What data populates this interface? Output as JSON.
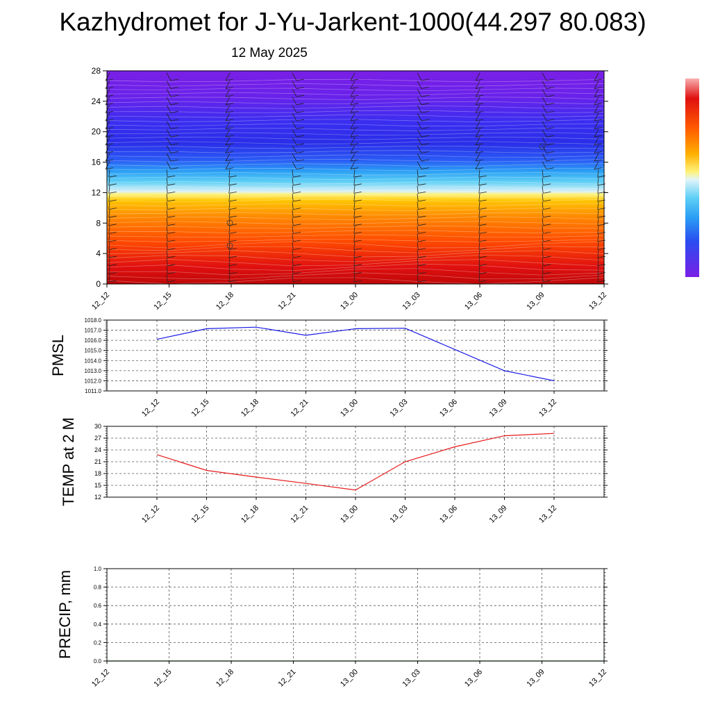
{
  "header": {
    "title": "Kazhydromet for J-Yu-Jarkent-1000(44.297 80.083)",
    "date": "12 May 2025"
  },
  "colors": {
    "pmsl_line": "#1a1ae6",
    "temp_line": "#e61a1a",
    "precip_line": "#006400",
    "gridline": "#555555",
    "colorbar": [
      "#7a1fe6",
      "#3a2ef0",
      "#2a5cf5",
      "#2a9ef5",
      "#5fd0f5",
      "#d8f0f8",
      "#fff27a",
      "#ffc400",
      "#ff8c00",
      "#ff4a00",
      "#e01010",
      "#c00808"
    ]
  },
  "chart_data": [
    {
      "type": "heatmap",
      "title": "",
      "x_ticks": [
        "12_12",
        "12_15",
        "12_18",
        "12_21",
        "13_00",
        "13_03",
        "13_06",
        "13_09",
        "13_12"
      ],
      "y_ticks": [
        "0",
        "4",
        "8",
        "12",
        "16",
        "20",
        "24",
        "28"
      ],
      "ylim": [
        0,
        28
      ],
      "colormap_order_bottom_to_top": [
        "dark red",
        "red",
        "orange",
        "yellow-orange",
        "pale yellow",
        "light blue",
        "blue",
        "indigo",
        "violet"
      ],
      "wind_barbs": true
    },
    {
      "type": "line",
      "ylabel": "PMSL",
      "x": [
        "12_12",
        "12_15",
        "12_18",
        "12_21",
        "13_00",
        "13_03",
        "13_06",
        "13_09",
        "13_12"
      ],
      "y_ticks": [
        "1011.0",
        "1012.0",
        "1013.0",
        "1014.0",
        "1015.0",
        "1016.0",
        "1017.0",
        "1018.0"
      ],
      "ylim": [
        1011.0,
        1018.0
      ],
      "series": [
        {
          "values": [
            1016.1,
            1017.15,
            1017.3,
            1016.5,
            1017.15,
            1017.2,
            1015.1,
            1013.0,
            1012.0
          ]
        }
      ],
      "grid": true
    },
    {
      "type": "line",
      "ylabel": "TEMP at 2 M",
      "x": [
        "12_12",
        "12_15",
        "12_18",
        "12_21",
        "13_00",
        "13_03",
        "13_06",
        "13_09",
        "13_12"
      ],
      "y_ticks": [
        "12",
        "15",
        "18",
        "21",
        "24",
        "27",
        "30"
      ],
      "ylim": [
        12,
        30
      ],
      "series": [
        {
          "values": [
            22.8,
            18.8,
            17.1,
            15.5,
            13.8,
            21.0,
            24.8,
            27.6,
            28.2
          ]
        }
      ],
      "grid": true
    },
    {
      "type": "line",
      "ylabel": "PRECIP, mm",
      "x": [
        "12_12",
        "12_15",
        "12_18",
        "12_21",
        "13_00",
        "13_03",
        "13_06",
        "13_09",
        "13_12"
      ],
      "y_ticks": [
        "0.0",
        "0.2",
        "0.4",
        "0.6",
        "0.8",
        "1.0"
      ],
      "ylim": [
        0.0,
        1.0
      ],
      "series": [
        {
          "values": [
            0,
            0,
            0,
            0,
            0,
            0,
            0,
            0,
            0
          ]
        }
      ],
      "grid": true
    }
  ]
}
